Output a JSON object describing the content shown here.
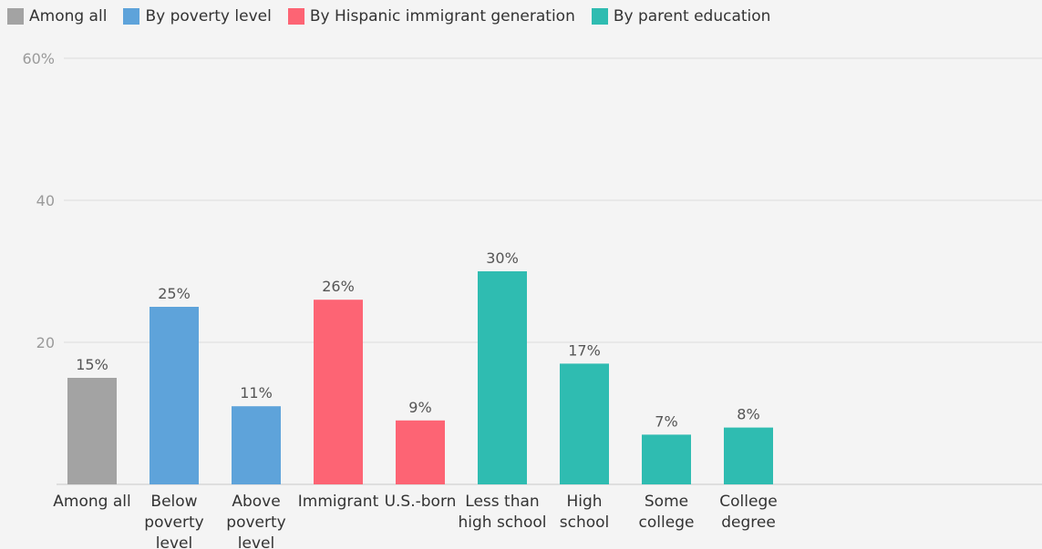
{
  "legend": [
    {
      "label": "Among all",
      "color": "#a3a3a3"
    },
    {
      "label": "By poverty level",
      "color": "#5ea3da"
    },
    {
      "label": "By Hispanic immigrant generation",
      "color": "#fd6474"
    },
    {
      "label": "By parent education",
      "color": "#2fbcb1"
    }
  ],
  "chart_data": {
    "type": "bar",
    "ylim": [
      0,
      60
    ],
    "yticks": [
      {
        "value": 60,
        "label": "60%"
      },
      {
        "value": 40,
        "label": "40"
      },
      {
        "value": 20,
        "label": "20"
      }
    ],
    "grid": true,
    "legend_position": "top-left",
    "series": [
      {
        "name": "Among all",
        "color": "#a3a3a3",
        "categories": [
          [
            "Among all"
          ]
        ],
        "values": [
          15
        ],
        "labels": [
          "15%"
        ]
      },
      {
        "name": "By poverty level",
        "color": "#5ea3da",
        "categories": [
          [
            "Below",
            "poverty",
            "level"
          ],
          [
            "Above",
            "poverty",
            "level"
          ]
        ],
        "values": [
          25,
          11
        ],
        "labels": [
          "25%",
          "11%"
        ]
      },
      {
        "name": "By Hispanic immigrant generation",
        "color": "#fd6474",
        "categories": [
          [
            "Immigrant"
          ],
          [
            "U.S.-born"
          ]
        ],
        "values": [
          26,
          9
        ],
        "labels": [
          "26%",
          "9%"
        ]
      },
      {
        "name": "By parent education",
        "color": "#2fbcb1",
        "categories": [
          [
            "Less than",
            "high school"
          ],
          [
            "High",
            "school"
          ],
          [
            "Some",
            "college"
          ],
          [
            "College",
            "degree"
          ]
        ],
        "values": [
          30,
          17,
          7,
          8
        ],
        "labels": [
          "30%",
          "17%",
          "7%",
          "8%"
        ]
      }
    ]
  }
}
